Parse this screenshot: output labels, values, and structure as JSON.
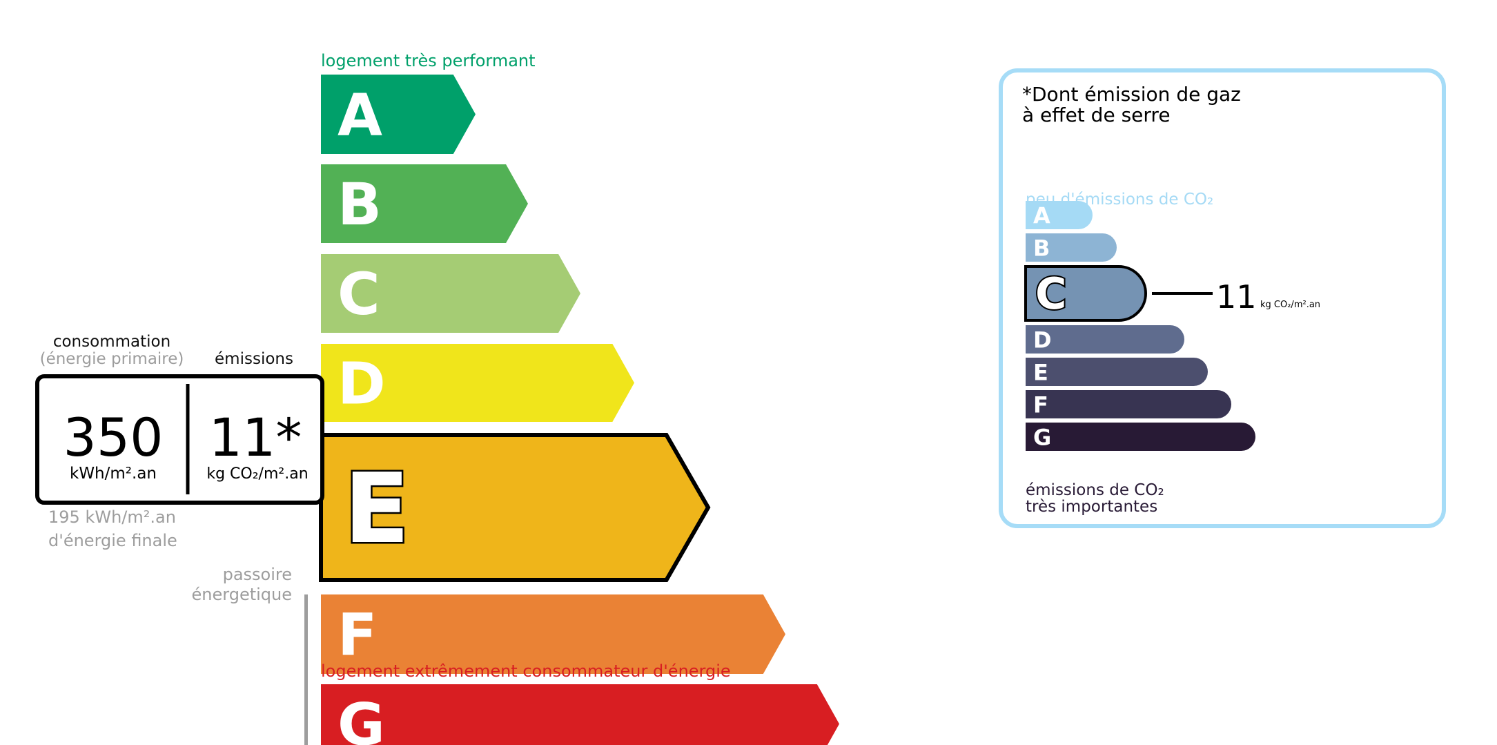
{
  "energy": {
    "top_label": "logement très performant",
    "bottom_label": "logement extrêmement consommateur d'énergie",
    "classes": [
      {
        "letter": "A",
        "color": "#00a06a"
      },
      {
        "letter": "B",
        "color": "#52b155"
      },
      {
        "letter": "C",
        "color": "#a5cc74"
      },
      {
        "letter": "D",
        "color": "#f0e51b"
      },
      {
        "letter": "E",
        "color": "#efb51a"
      },
      {
        "letter": "F",
        "color": "#ea8235"
      },
      {
        "letter": "G",
        "color": "#d81e22"
      }
    ],
    "current_class": "E",
    "consumption_label": "consommation",
    "consumption_sublabel": "(énergie primaire)",
    "emissions_label": "émissions",
    "consumption_value": "350",
    "consumption_unit": "kWh/m².an",
    "emissions_value": "11*",
    "emissions_unit": "kg CO₂/m².an",
    "final_energy_line1": "195 kWh/m².an",
    "final_energy_line2": "d'énergie finale",
    "passoire_line1": "passoire",
    "passoire_line2": "énergetique",
    "label_colors": {
      "top": "#00a06a",
      "bottom": "#d81e22",
      "muted": "#9d9d9d"
    }
  },
  "ges": {
    "title_line1": "*Dont émission de gaz",
    "title_line2": "à effet de serre",
    "top_label": "peu d'émissions de CO₂",
    "bottom_label_line1": "émissions de CO₂",
    "bottom_label_line2": "très importantes",
    "classes": [
      {
        "letter": "A",
        "color": "#a5daf5"
      },
      {
        "letter": "B",
        "color": "#8db4d4"
      },
      {
        "letter": "C",
        "color": "#7593b3"
      },
      {
        "letter": "D",
        "color": "#5f6c8e"
      },
      {
        "letter": "E",
        "color": "#4c4f6e"
      },
      {
        "letter": "F",
        "color": "#383452"
      },
      {
        "letter": "G",
        "color": "#281a35"
      }
    ],
    "current_class": "C",
    "value": "11",
    "unit": "kg CO₂/m².an",
    "border_color": "#a6dcf7"
  }
}
